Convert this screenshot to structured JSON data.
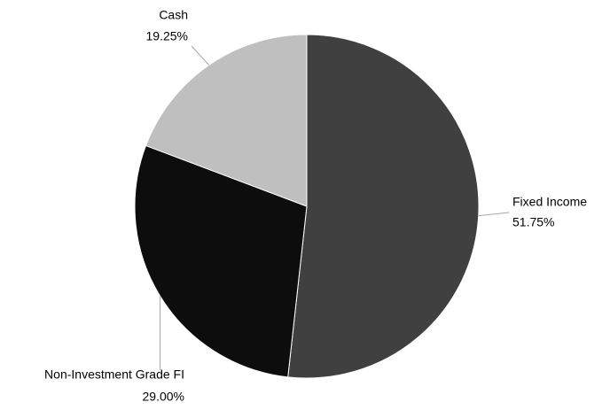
{
  "chart_data": {
    "type": "pie",
    "categories": [
      "Fixed Income",
      "Non-Investment Grade FI",
      "Cash"
    ],
    "values": [
      51.75,
      29.0,
      19.25
    ],
    "value_labels": [
      "51.75%",
      "29.00%",
      "19.25%"
    ],
    "colors": [
      "#404040",
      "#0d0d0d",
      "#bfbfbf"
    ]
  }
}
